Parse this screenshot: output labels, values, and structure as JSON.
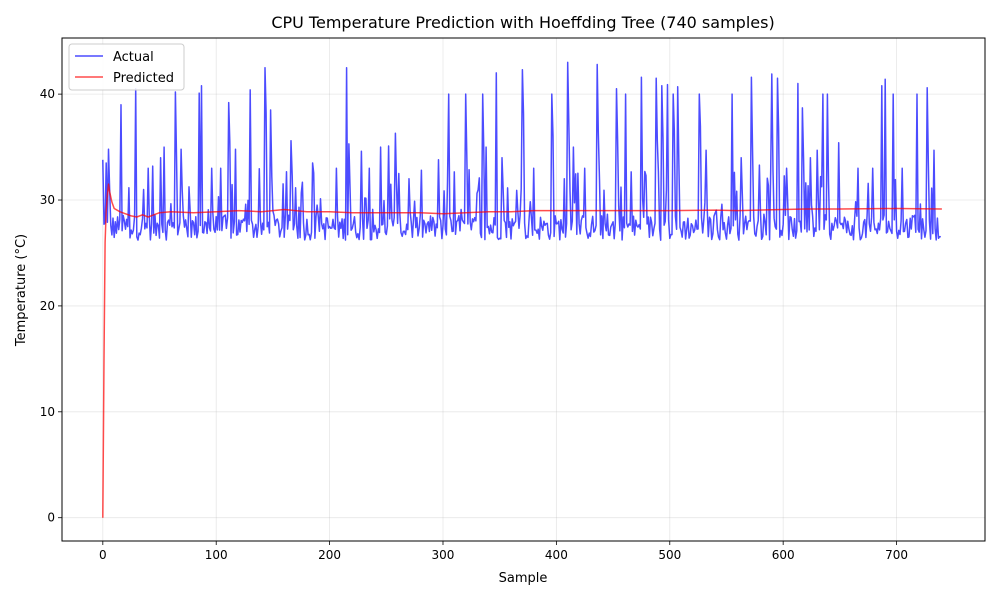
{
  "chart_data": {
    "type": "line",
    "title": "CPU Temperature Prediction with Hoeffding Tree (740 samples)",
    "xlabel": "Sample",
    "ylabel": "Temperature (°C)",
    "xlim": [
      -36,
      778
    ],
    "ylim": [
      -2.2,
      45.3
    ],
    "xticks": [
      0,
      100,
      200,
      300,
      400,
      500,
      600,
      700
    ],
    "yticks": [
      0,
      10,
      20,
      30,
      40
    ],
    "grid": true,
    "legend_position": "top-left",
    "series": [
      {
        "name": "Actual",
        "color": "#0000ff",
        "generator": {
          "count": 740,
          "baseline": 27.5,
          "spikes": [
            [
              0,
              33.8
            ],
            [
              3,
              33.5
            ],
            [
              5,
              34.8
            ],
            [
              16,
              39.0
            ],
            [
              29,
              40.5
            ],
            [
              40,
              33.0
            ],
            [
              44,
              33.2
            ],
            [
              51,
              34.0
            ],
            [
              54,
              35.0
            ],
            [
              64,
              40.2
            ],
            [
              69,
              34.8
            ],
            [
              85,
              40.1
            ],
            [
              87,
              40.8
            ],
            [
              96,
              33.0
            ],
            [
              104,
              33.0
            ],
            [
              111,
              39.2
            ],
            [
              117,
              34.8
            ],
            [
              130,
              40.4
            ],
            [
              143,
              42.5
            ],
            [
              148,
              38.5
            ],
            [
              166,
              35.6
            ],
            [
              185,
              33.5
            ],
            [
              206,
              33.0
            ],
            [
              215,
              42.5
            ],
            [
              217,
              35.3
            ],
            [
              228,
              34.6
            ],
            [
              235,
              33.0
            ],
            [
              245,
              35.0
            ],
            [
              252,
              35.1
            ],
            [
              258,
              36.3
            ],
            [
              270,
              32.0
            ],
            [
              296,
              33.8
            ],
            [
              305,
              40.0
            ],
            [
              320,
              40.0
            ],
            [
              335,
              40.0
            ],
            [
              338,
              35.0
            ],
            [
              347,
              42.0
            ],
            [
              352,
              34.0
            ],
            [
              370,
              42.3
            ],
            [
              380,
              33.0
            ],
            [
              396,
              40.0
            ],
            [
              410,
              43.0
            ],
            [
              415,
              35.0
            ],
            [
              425,
              33.0
            ],
            [
              436,
              42.8
            ],
            [
              453,
              40.5
            ],
            [
              461,
              40.0
            ],
            [
              475,
              41.6
            ],
            [
              488,
              41.5
            ],
            [
              493,
              40.8
            ],
            [
              498,
              40.9
            ],
            [
              503,
              40.0
            ],
            [
              507,
              40.7
            ],
            [
              526,
              40.0
            ],
            [
              532,
              34.7
            ],
            [
              555,
              40.0
            ],
            [
              563,
              34.0
            ],
            [
              572,
              41.6
            ],
            [
              579,
              33.3
            ],
            [
              590,
              41.9
            ],
            [
              595,
              41.5
            ],
            [
              603,
              33.0
            ],
            [
              613,
              41.0
            ],
            [
              617,
              38.7
            ],
            [
              624,
              34.0
            ],
            [
              630,
              34.7
            ],
            [
              635,
              40.0
            ],
            [
              639,
              40.0
            ],
            [
              649,
              35.4
            ],
            [
              666,
              33.0
            ],
            [
              679,
              33.0
            ],
            [
              687,
              40.8
            ],
            [
              690,
              41.4
            ],
            [
              697,
              40.0
            ],
            [
              705,
              33.0
            ],
            [
              718,
              40.0
            ],
            [
              727,
              40.6
            ],
            [
              733,
              34.7
            ]
          ]
        }
      },
      {
        "name": "Predicted",
        "color": "#ff0000",
        "points": [
          [
            0,
            0
          ],
          [
            1,
            15
          ],
          [
            2,
            26
          ],
          [
            3,
            29
          ],
          [
            4,
            30.5
          ],
          [
            5,
            31.5
          ],
          [
            6,
            30.8
          ],
          [
            8,
            29.8
          ],
          [
            10,
            29.2
          ],
          [
            15,
            28.9
          ],
          [
            20,
            28.7
          ],
          [
            25,
            28.5
          ],
          [
            30,
            28.4
          ],
          [
            35,
            28.6
          ],
          [
            40,
            28.4
          ],
          [
            45,
            28.6
          ],
          [
            50,
            28.8
          ],
          [
            60,
            28.9
          ],
          [
            80,
            28.8
          ],
          [
            100,
            28.9
          ],
          [
            120,
            29.0
          ],
          [
            140,
            28.9
          ],
          [
            160,
            29.1
          ],
          [
            180,
            28.9
          ],
          [
            200,
            28.9
          ],
          [
            220,
            28.8
          ],
          [
            240,
            28.8
          ],
          [
            260,
            28.8
          ],
          [
            280,
            28.8
          ],
          [
            300,
            28.7
          ],
          [
            320,
            28.8
          ],
          [
            340,
            28.9
          ],
          [
            360,
            28.9
          ],
          [
            380,
            29.0
          ],
          [
            400,
            29.0
          ],
          [
            450,
            29.0
          ],
          [
            500,
            29.0
          ],
          [
            540,
            29.05
          ],
          [
            560,
            29.0
          ],
          [
            600,
            29.1
          ],
          [
            620,
            29.15
          ],
          [
            650,
            29.15
          ],
          [
            700,
            29.2
          ],
          [
            740,
            29.15
          ]
        ]
      }
    ]
  }
}
